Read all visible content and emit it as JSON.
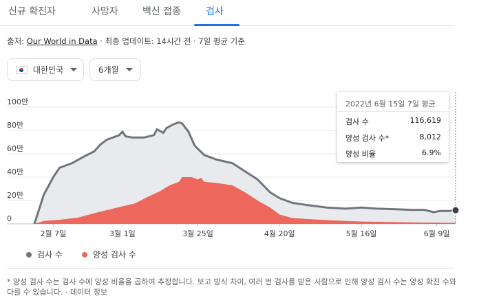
{
  "tabs": [
    {
      "label": "신규 확진자",
      "active": false
    },
    {
      "label": "사망자",
      "active": false
    },
    {
      "label": "백신 접종",
      "active": false
    },
    {
      "label": "검사",
      "active": true
    }
  ],
  "source": {
    "prefix": "출처: ",
    "link_text": "Our World in Data",
    "suffix": " · 최종 업데이트: 14시간 전 · 7일 평균 기준"
  },
  "filters": {
    "country": "대한민국",
    "country_flag_icon": "korea-flag-icon",
    "period": "6개월"
  },
  "tooltip": {
    "header": "2022년 6월 15일 7일 평균",
    "rows": [
      {
        "label": "검사 수",
        "value": "116,619"
      },
      {
        "label": "양성 검사 수*",
        "value": "8,012"
      },
      {
        "label": "양성 비율",
        "value": "6.9%"
      }
    ]
  },
  "legend": [
    {
      "label": "검사 수",
      "color": "#70757a"
    },
    {
      "label": "양성 검사 수",
      "color": "#ee675c"
    }
  ],
  "footnote": {
    "text": "* 양성 검사 수는 검사 수에 양성 비율을 곱하여 추정합니다. 보고 방식 차이, 여러 번 검사를 받은 사람으로 인해 양성 검사 수는 양성 확진 수와 다를 수 있습니다.",
    "sep": " · ",
    "link": "데이터 정보"
  },
  "chart_data": {
    "type": "area",
    "x_start": "2022-02-01",
    "x_end": "2022-06-15",
    "xticks": [
      {
        "date": "2022-02-07",
        "label": "2월 7일"
      },
      {
        "date": "2022-03-01",
        "label": "3월 1일"
      },
      {
        "date": "2022-03-25",
        "label": "3월 25일"
      },
      {
        "date": "2022-04-20",
        "label": "4월 20일"
      },
      {
        "date": "2022-05-16",
        "label": "5월 16일"
      },
      {
        "date": "2022-06-09",
        "label": "6월 9일"
      }
    ],
    "yticks": [
      {
        "value": 0,
        "label": "0"
      },
      {
        "value": 200000,
        "label": "20만"
      },
      {
        "value": 400000,
        "label": "40만"
      },
      {
        "value": 600000,
        "label": "60만"
      },
      {
        "value": 800000,
        "label": "80만"
      },
      {
        "value": 1000000,
        "label": "100만"
      }
    ],
    "ylim": [
      0,
      1000000
    ],
    "series": [
      {
        "name": "검사 수",
        "color": "#70757a",
        "points": [
          [
            "2022-02-01",
            0
          ],
          [
            "2022-02-04",
            250000
          ],
          [
            "2022-02-07",
            400000
          ],
          [
            "2022-02-09",
            480000
          ],
          [
            "2022-02-13",
            520000
          ],
          [
            "2022-02-17",
            580000
          ],
          [
            "2022-02-20",
            620000
          ],
          [
            "2022-02-22",
            680000
          ],
          [
            "2022-02-24",
            720000
          ],
          [
            "2022-02-26",
            740000
          ],
          [
            "2022-02-28",
            760000
          ],
          [
            "2022-03-01",
            790000
          ],
          [
            "2022-03-02",
            750000
          ],
          [
            "2022-03-04",
            740000
          ],
          [
            "2022-03-08",
            740000
          ],
          [
            "2022-03-11",
            760000
          ],
          [
            "2022-03-12",
            810000
          ],
          [
            "2022-03-14",
            780000
          ],
          [
            "2022-03-15",
            820000
          ],
          [
            "2022-03-17",
            850000
          ],
          [
            "2022-03-19",
            870000
          ],
          [
            "2022-03-20",
            860000
          ],
          [
            "2022-03-22",
            790000
          ],
          [
            "2022-03-24",
            670000
          ],
          [
            "2022-03-27",
            590000
          ],
          [
            "2022-03-31",
            550000
          ],
          [
            "2022-04-05",
            520000
          ],
          [
            "2022-04-09",
            450000
          ],
          [
            "2022-04-13",
            380000
          ],
          [
            "2022-04-17",
            270000
          ],
          [
            "2022-04-20",
            220000
          ],
          [
            "2022-04-24",
            180000
          ],
          [
            "2022-04-29",
            160000
          ],
          [
            "2022-05-05",
            140000
          ],
          [
            "2022-05-11",
            130000
          ],
          [
            "2022-05-16",
            140000
          ],
          [
            "2022-05-21",
            130000
          ],
          [
            "2022-05-27",
            125000
          ],
          [
            "2022-06-01",
            120000
          ],
          [
            "2022-06-05",
            120000
          ],
          [
            "2022-06-08",
            100000
          ],
          [
            "2022-06-10",
            110000
          ],
          [
            "2022-06-13",
            110000
          ],
          [
            "2022-06-15",
            116619
          ]
        ]
      },
      {
        "name": "양성 검사 수",
        "color": "#ee675c",
        "points": [
          [
            "2022-02-01",
            0
          ],
          [
            "2022-02-04",
            25000
          ],
          [
            "2022-02-09",
            35000
          ],
          [
            "2022-02-15",
            55000
          ],
          [
            "2022-02-22",
            105000
          ],
          [
            "2022-03-01",
            150000
          ],
          [
            "2022-03-05",
            175000
          ],
          [
            "2022-03-09",
            230000
          ],
          [
            "2022-03-13",
            280000
          ],
          [
            "2022-03-16",
            330000
          ],
          [
            "2022-03-19",
            360000
          ],
          [
            "2022-03-20",
            400000
          ],
          [
            "2022-03-23",
            400000
          ],
          [
            "2022-03-25",
            380000
          ],
          [
            "2022-03-26",
            395000
          ],
          [
            "2022-03-27",
            360000
          ],
          [
            "2022-03-31",
            350000
          ],
          [
            "2022-04-05",
            330000
          ],
          [
            "2022-04-09",
            270000
          ],
          [
            "2022-04-13",
            200000
          ],
          [
            "2022-04-17",
            140000
          ],
          [
            "2022-04-20",
            80000
          ],
          [
            "2022-04-24",
            50000
          ],
          [
            "2022-04-30",
            40000
          ],
          [
            "2022-05-06",
            30000
          ],
          [
            "2022-05-16",
            20000
          ],
          [
            "2022-05-26",
            15000
          ],
          [
            "2022-06-05",
            10000
          ],
          [
            "2022-06-15",
            8012
          ]
        ]
      }
    ],
    "hover_date": "2022-06-15",
    "legend_position": "bottom"
  }
}
